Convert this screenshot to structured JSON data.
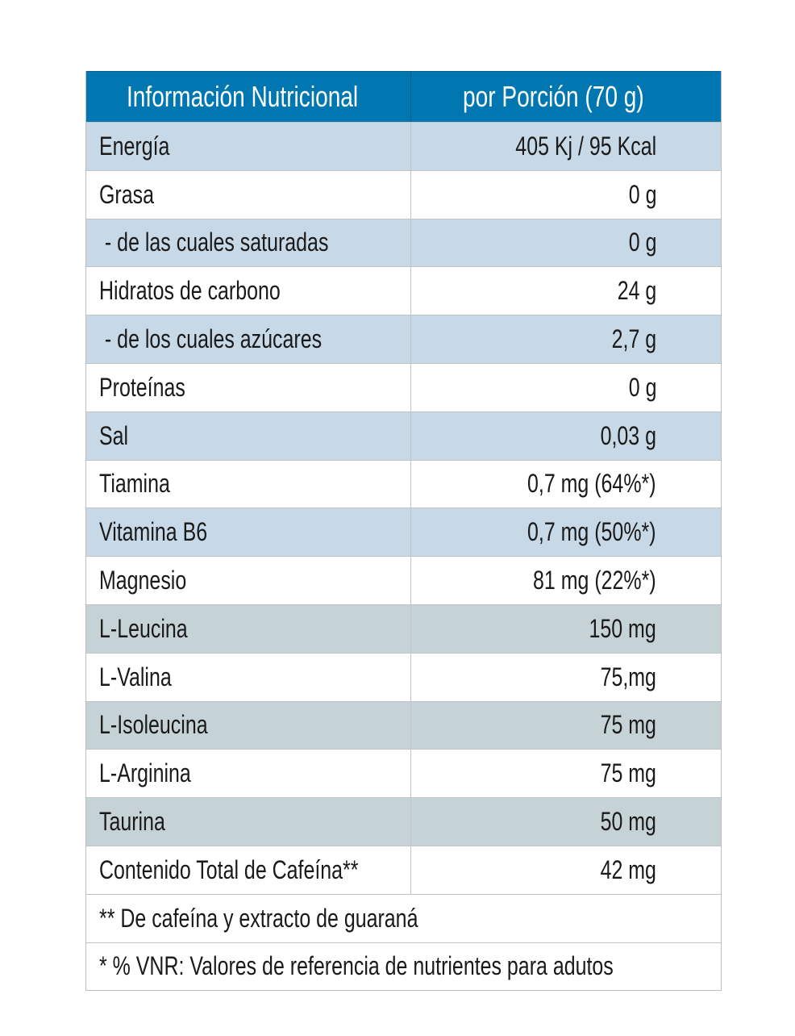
{
  "header": {
    "col1": "Información Nutricional",
    "col2": "por Porción (70 g)"
  },
  "colors": {
    "header": "#0077b0",
    "row_blue": "#c7d8e6",
    "row_grey": "#c6d3d6"
  },
  "rows": [
    {
      "label": "Energía",
      "value": "405 Kj / 95 Kcal",
      "shade": "blue"
    },
    {
      "label": "Grasa",
      "value": "0 g",
      "shade": "white"
    },
    {
      "label": " - de las cuales saturadas",
      "value": "0 g",
      "shade": "blue"
    },
    {
      "label": "Hidratos de carbono",
      "value": "24 g",
      "shade": "white"
    },
    {
      "label": " - de los cuales azúcares",
      "value": "2,7 g",
      "shade": "blue"
    },
    {
      "label": "Proteínas",
      "value": "0 g",
      "shade": "white"
    },
    {
      "label": "Sal",
      "value": "0,03 g",
      "shade": "blue"
    },
    {
      "label": "Tiamina",
      "value": "0,7 mg (64%*)",
      "shade": "white"
    },
    {
      "label": "Vitamina B6",
      "value": "0,7 mg (50%*)",
      "shade": "blue"
    },
    {
      "label": "Magnesio",
      "value": "81 mg (22%*)",
      "shade": "white"
    },
    {
      "label": "L-Leucina",
      "value": "150 mg",
      "shade": "grey"
    },
    {
      "label": "L-Valina",
      "value": "75,mg",
      "shade": "white"
    },
    {
      "label": "L-Isoleucina",
      "value": "75 mg",
      "shade": "grey"
    },
    {
      "label": "L-Arginina",
      "value": "75 mg",
      "shade": "white"
    },
    {
      "label": "Taurina",
      "value": "50 mg",
      "shade": "grey"
    },
    {
      "label": "Contenido Total de Cafeína**",
      "value": "42 mg",
      "shade": "white"
    }
  ],
  "footnotes": [
    "** De cafeína y extracto de guaraná",
    "* % VNR: Valores de referencia de nutrientes para adutos"
  ]
}
